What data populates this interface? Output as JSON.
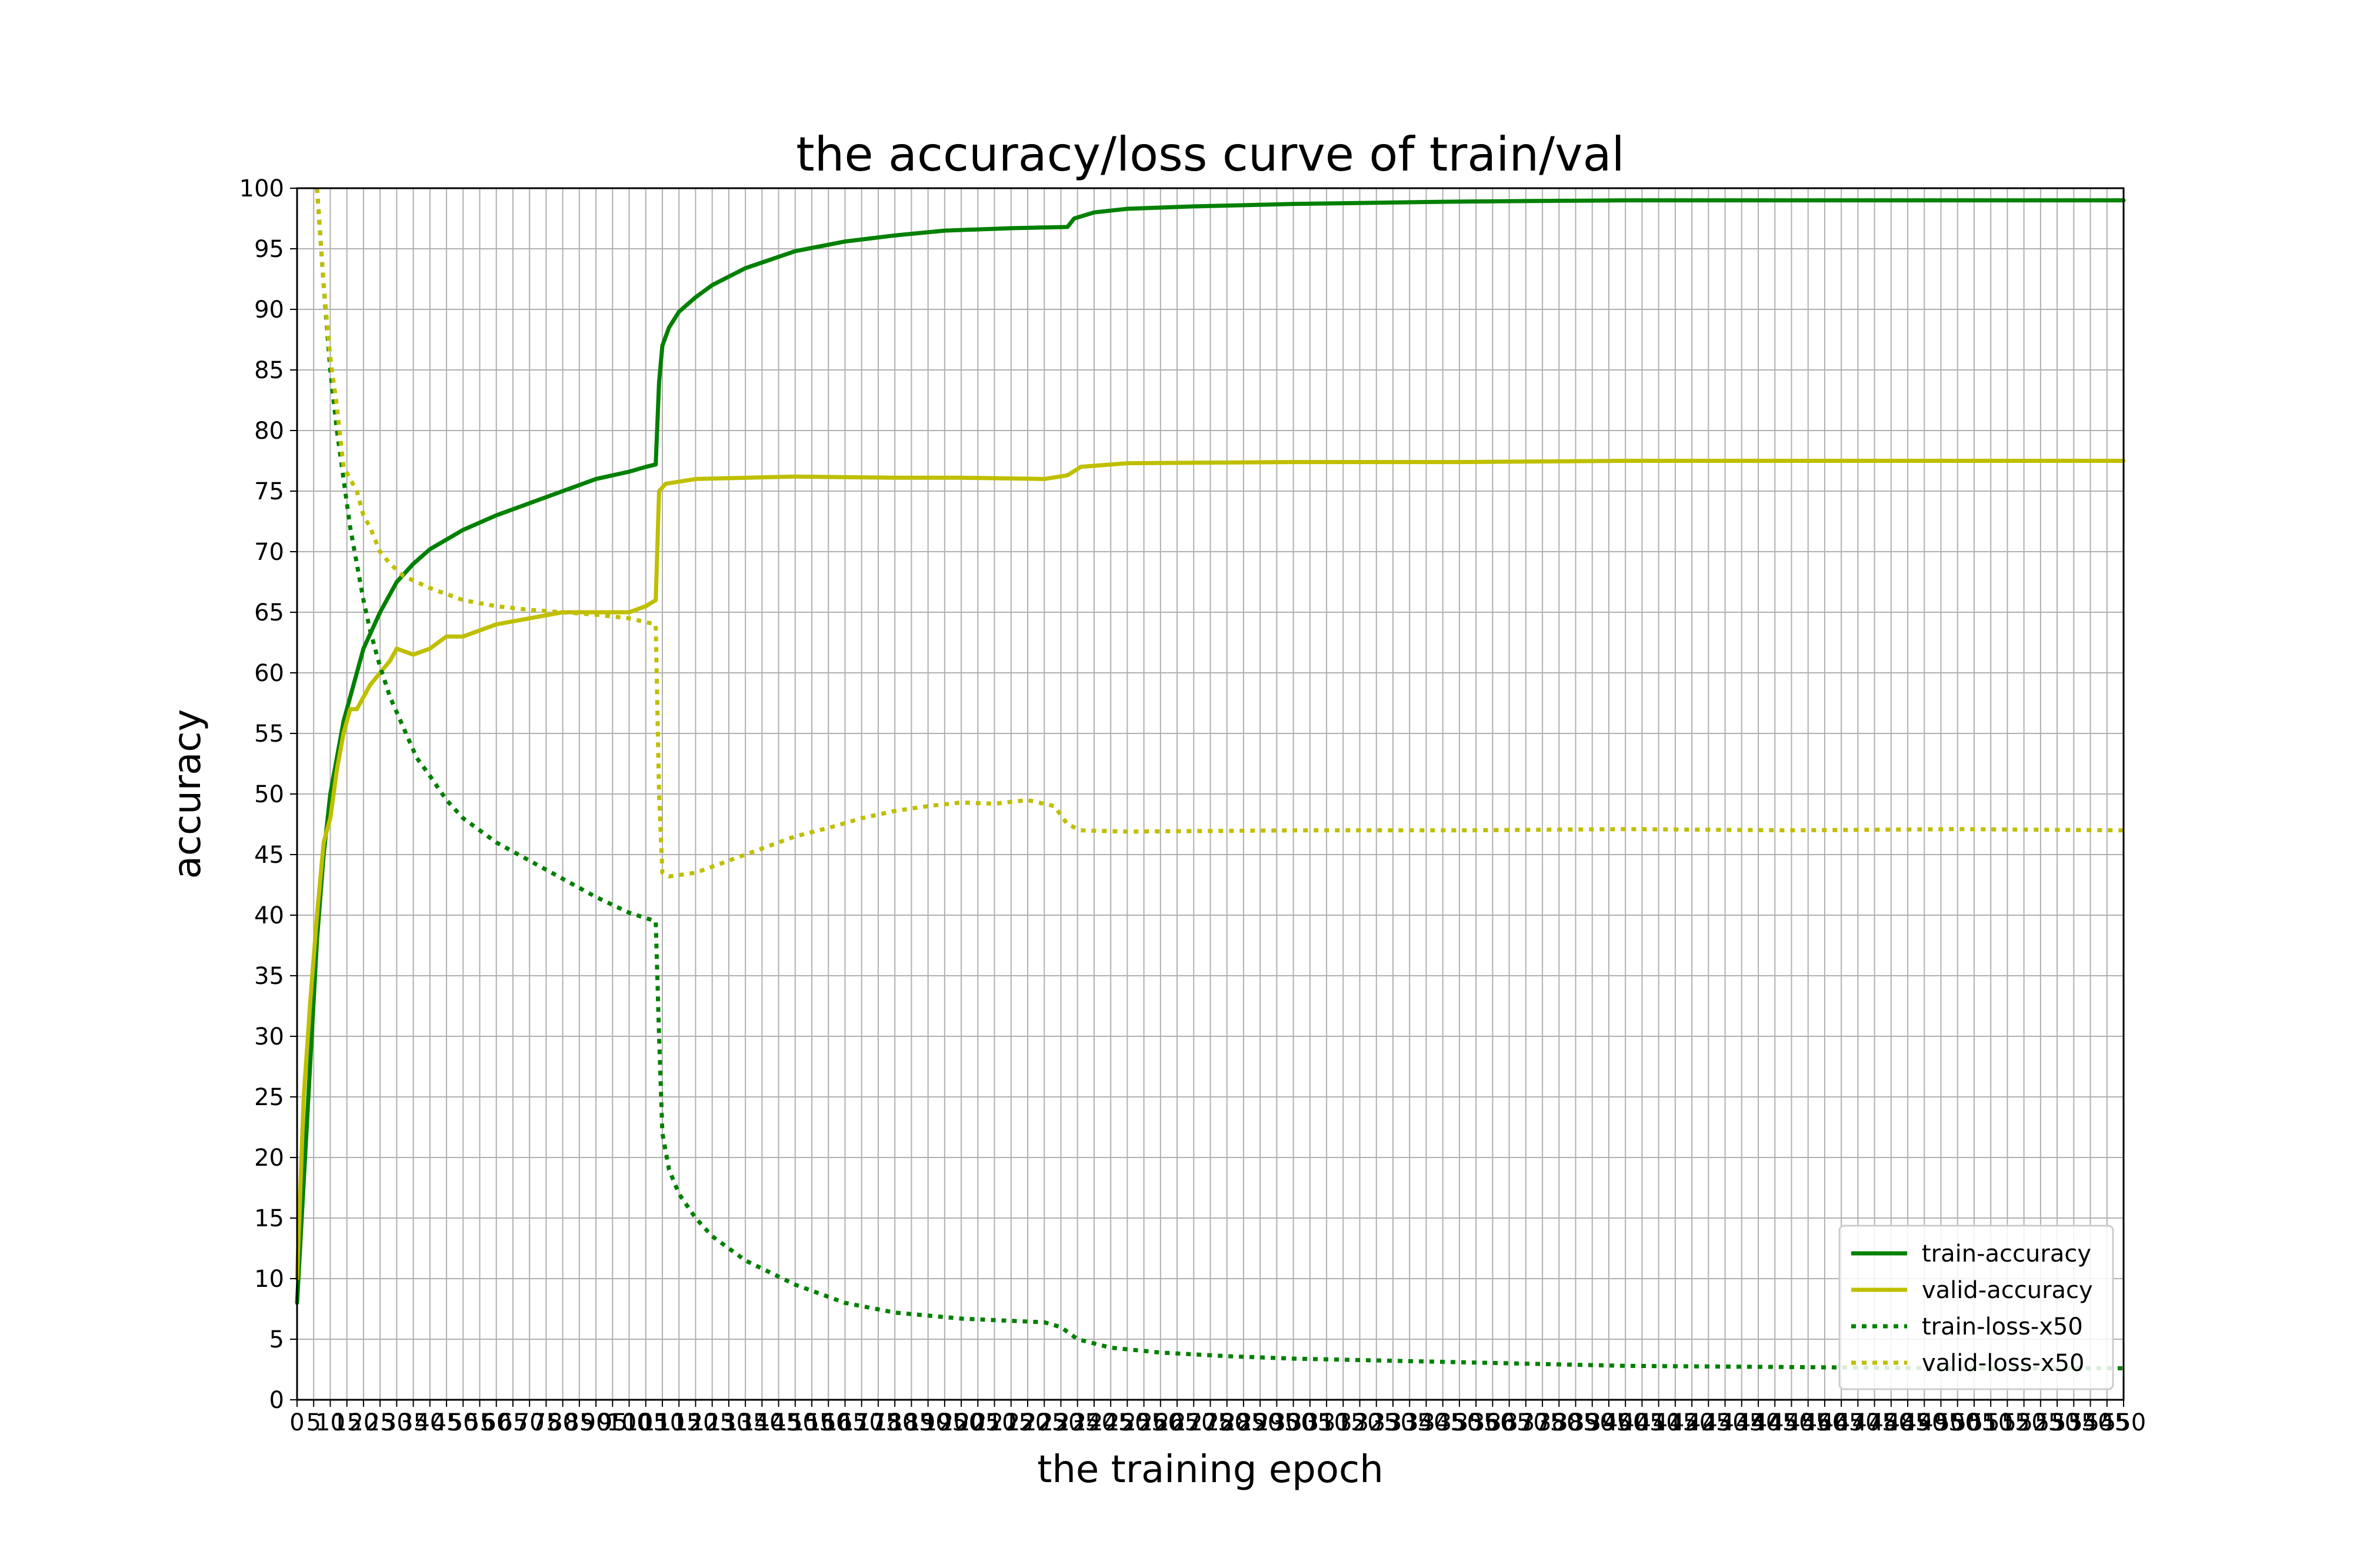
{
  "chart_data": {
    "type": "line",
    "title": "the accuracy/loss curve of train/val",
    "xlabel": "the training epoch",
    "ylabel": "accuracy",
    "xlim": [
      0,
      550
    ],
    "ylim": [
      0,
      100
    ],
    "grid": true,
    "legend_position": "bottom-right",
    "x_tick_step": 5,
    "y_ticks": [
      0,
      5,
      10,
      15,
      20,
      25,
      30,
      35,
      40,
      45,
      50,
      55,
      60,
      65,
      70,
      75,
      80,
      85,
      90,
      95,
      100
    ],
    "series": [
      {
        "name": "train-accuracy",
        "color": "#008000",
        "style": "solid",
        "points": [
          [
            0,
            8
          ],
          [
            2,
            18
          ],
          [
            4,
            28
          ],
          [
            6,
            38
          ],
          [
            8,
            45
          ],
          [
            10,
            50
          ],
          [
            12,
            53
          ],
          [
            14,
            56
          ],
          [
            16,
            58
          ],
          [
            18,
            60
          ],
          [
            20,
            62
          ],
          [
            25,
            65
          ],
          [
            30,
            67.5
          ],
          [
            35,
            69
          ],
          [
            40,
            70.2
          ],
          [
            50,
            71.8
          ],
          [
            60,
            73
          ],
          [
            70,
            74
          ],
          [
            80,
            75
          ],
          [
            90,
            76
          ],
          [
            100,
            76.6
          ],
          [
            105,
            77
          ],
          [
            108,
            77.2
          ],
          [
            109,
            84
          ],
          [
            110,
            87
          ],
          [
            112,
            88.5
          ],
          [
            115,
            89.8
          ],
          [
            120,
            91
          ],
          [
            125,
            92
          ],
          [
            135,
            93.4
          ],
          [
            150,
            94.8
          ],
          [
            165,
            95.6
          ],
          [
            180,
            96.1
          ],
          [
            195,
            96.5
          ],
          [
            215,
            96.7
          ],
          [
            232,
            96.8
          ],
          [
            234,
            97.5
          ],
          [
            240,
            98
          ],
          [
            250,
            98.3
          ],
          [
            270,
            98.5
          ],
          [
            300,
            98.7
          ],
          [
            350,
            98.9
          ],
          [
            400,
            99
          ],
          [
            450,
            99
          ],
          [
            500,
            99
          ],
          [
            550,
            99
          ]
        ]
      },
      {
        "name": "valid-accuracy",
        "color": "#bfbf00",
        "style": "solid",
        "points": [
          [
            0,
            10
          ],
          [
            2,
            25
          ],
          [
            4,
            33
          ],
          [
            6,
            40
          ],
          [
            8,
            46
          ],
          [
            10,
            48
          ],
          [
            12,
            52
          ],
          [
            14,
            55
          ],
          [
            16,
            57
          ],
          [
            18,
            57
          ],
          [
            20,
            58
          ],
          [
            22,
            59
          ],
          [
            25,
            60
          ],
          [
            28,
            61
          ],
          [
            30,
            62
          ],
          [
            35,
            61.5
          ],
          [
            40,
            62
          ],
          [
            45,
            63
          ],
          [
            50,
            63
          ],
          [
            60,
            64
          ],
          [
            70,
            64.5
          ],
          [
            80,
            65
          ],
          [
            90,
            65
          ],
          [
            100,
            65
          ],
          [
            105,
            65.5
          ],
          [
            108,
            66
          ],
          [
            109,
            75
          ],
          [
            111,
            75.6
          ],
          [
            120,
            76
          ],
          [
            150,
            76.2
          ],
          [
            180,
            76.1
          ],
          [
            200,
            76.1
          ],
          [
            225,
            76
          ],
          [
            232,
            76.3
          ],
          [
            236,
            77
          ],
          [
            250,
            77.3
          ],
          [
            300,
            77.4
          ],
          [
            350,
            77.4
          ],
          [
            400,
            77.5
          ],
          [
            450,
            77.5
          ],
          [
            500,
            77.5
          ],
          [
            550,
            77.5
          ]
        ]
      },
      {
        "name": "train-loss-x50",
        "color": "#008000",
        "style": "dotted",
        "points": [
          [
            6,
            100
          ],
          [
            8,
            92
          ],
          [
            10,
            85
          ],
          [
            12,
            80
          ],
          [
            14,
            76
          ],
          [
            16,
            72
          ],
          [
            18,
            69
          ],
          [
            20,
            66
          ],
          [
            22,
            63.5
          ],
          [
            25,
            60.5
          ],
          [
            28,
            58
          ],
          [
            32,
            55.5
          ],
          [
            36,
            53
          ],
          [
            40,
            51.5
          ],
          [
            45,
            49.5
          ],
          [
            50,
            48
          ],
          [
            60,
            46
          ],
          [
            70,
            44.5
          ],
          [
            80,
            43
          ],
          [
            90,
            41.5
          ],
          [
            100,
            40.2
          ],
          [
            108,
            39.5
          ],
          [
            109,
            30
          ],
          [
            110,
            22
          ],
          [
            112,
            19
          ],
          [
            115,
            17
          ],
          [
            120,
            15
          ],
          [
            125,
            13.5
          ],
          [
            135,
            11.5
          ],
          [
            150,
            9.5
          ],
          [
            165,
            8
          ],
          [
            180,
            7.2
          ],
          [
            200,
            6.7
          ],
          [
            225,
            6.4
          ],
          [
            230,
            6
          ],
          [
            235,
            5
          ],
          [
            245,
            4.3
          ],
          [
            260,
            3.9
          ],
          [
            280,
            3.6
          ],
          [
            300,
            3.4
          ],
          [
            350,
            3.1
          ],
          [
            400,
            2.8
          ],
          [
            450,
            2.7
          ],
          [
            500,
            2.6
          ],
          [
            550,
            2.6
          ]
        ]
      },
      {
        "name": "valid-loss-x50",
        "color": "#bfbf00",
        "style": "dotted",
        "points": [
          [
            6,
            100
          ],
          [
            8,
            92
          ],
          [
            10,
            86
          ],
          [
            12,
            82
          ],
          [
            14,
            77
          ],
          [
            16,
            76
          ],
          [
            18,
            75
          ],
          [
            20,
            73
          ],
          [
            22,
            72
          ],
          [
            25,
            70
          ],
          [
            28,
            69
          ],
          [
            32,
            68
          ],
          [
            36,
            67.5
          ],
          [
            40,
            67
          ],
          [
            45,
            66.5
          ],
          [
            50,
            66
          ],
          [
            60,
            65.5
          ],
          [
            70,
            65.2
          ],
          [
            80,
            65
          ],
          [
            90,
            64.8
          ],
          [
            100,
            64.5
          ],
          [
            108,
            64
          ],
          [
            109,
            50
          ],
          [
            110,
            43.5
          ],
          [
            112,
            43.2
          ],
          [
            120,
            43.5
          ],
          [
            130,
            44.5
          ],
          [
            140,
            45.5
          ],
          [
            150,
            46.5
          ],
          [
            160,
            47.2
          ],
          [
            170,
            48
          ],
          [
            180,
            48.6
          ],
          [
            190,
            49
          ],
          [
            200,
            49.3
          ],
          [
            210,
            49.2
          ],
          [
            220,
            49.5
          ],
          [
            228,
            49
          ],
          [
            232,
            47.5
          ],
          [
            236,
            47
          ],
          [
            250,
            46.9
          ],
          [
            300,
            47
          ],
          [
            350,
            47
          ],
          [
            400,
            47.1
          ],
          [
            450,
            47
          ],
          [
            500,
            47.1
          ],
          [
            550,
            47
          ]
        ]
      }
    ]
  }
}
